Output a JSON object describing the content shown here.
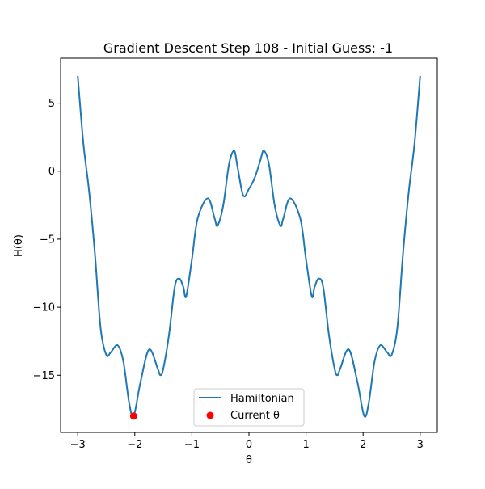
{
  "colors": {
    "series_line": "#1f77b4",
    "current_marker": "#ff0000",
    "axes": "#000000",
    "legend_border": "#cccccc"
  },
  "chart_data": {
    "type": "line",
    "title": "Gradient Descent Step 108 - Initial Guess: -1",
    "xlabel": "θ",
    "ylabel": "H(θ)",
    "xlim": [
      -3.3,
      3.3
    ],
    "ylim": [
      -19.2,
      8.3
    ],
    "grid": false,
    "legend_position": "lower center",
    "x_ticks": [
      -3,
      -2,
      -1,
      0,
      1,
      2,
      3
    ],
    "x_tick_labels": [
      "−3",
      "−2",
      "−1",
      "0",
      "1",
      "2",
      "3"
    ],
    "y_ticks": [
      5,
      0,
      -5,
      -10,
      -15
    ],
    "y_tick_labels": [
      "5",
      "0",
      "−5",
      "−10",
      "−15"
    ],
    "series": [
      {
        "name": "Hamiltonian",
        "x": [
          -3.0,
          -2.9,
          -2.8,
          -2.7,
          -2.6,
          -2.5,
          -2.42,
          -2.3,
          -2.2,
          -2.1,
          -2.02,
          -1.9,
          -1.75,
          -1.6,
          -1.55,
          -1.5,
          -1.4,
          -1.3,
          -1.22,
          -1.15,
          -1.1,
          -1.0,
          -0.9,
          -0.72,
          -0.6,
          -0.55,
          -0.45,
          -0.35,
          -0.26,
          -0.2,
          -0.1,
          0.0,
          0.1,
          0.2,
          0.26,
          0.35,
          0.45,
          0.55,
          0.6,
          0.72,
          0.9,
          1.0,
          1.1,
          1.15,
          1.22,
          1.3,
          1.4,
          1.5,
          1.55,
          1.6,
          1.75,
          1.9,
          2.02,
          2.1,
          2.2,
          2.3,
          2.42,
          2.5,
          2.6,
          2.7,
          2.8,
          2.9,
          3.0
        ],
        "y": [
          7.0,
          2.0,
          -1.5,
          -6.0,
          -11.5,
          -13.5,
          -13.3,
          -12.8,
          -14.0,
          -17.0,
          -18.0,
          -15.5,
          -13.1,
          -14.5,
          -15.0,
          -14.5,
          -12.0,
          -8.5,
          -7.9,
          -8.5,
          -9.2,
          -6.5,
          -3.5,
          -2.0,
          -3.5,
          -4.0,
          -2.5,
          0.5,
          1.5,
          0.3,
          -1.8,
          -1.3,
          -0.5,
          0.8,
          1.5,
          0.5,
          -2.5,
          -4.0,
          -3.5,
          -2.0,
          -3.5,
          -6.5,
          -9.2,
          -8.5,
          -7.9,
          -8.5,
          -12.0,
          -14.5,
          -15.0,
          -14.5,
          -13.1,
          -15.5,
          -18.0,
          -17.0,
          -14.0,
          -12.8,
          -13.3,
          -13.5,
          -11.5,
          -6.0,
          -1.5,
          2.0,
          7.0
        ]
      },
      {
        "name": "Current θ",
        "type": "scatter",
        "x": [
          -2.02
        ],
        "y": [
          -18.0
        ]
      }
    ]
  }
}
